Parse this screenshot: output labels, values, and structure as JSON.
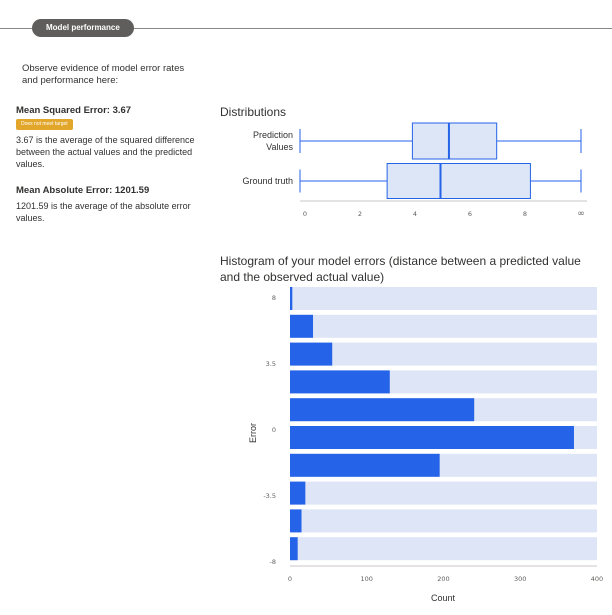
{
  "header": {
    "title": "Model performance"
  },
  "intro": "Observe evidence of model error rates and performance here:",
  "metrics": {
    "mse": {
      "title": "Mean Squared Error: 3.67",
      "badge": "Does not meet target",
      "desc": "3.67 is the average of the squared difference between the actual values and the predicted values."
    },
    "mae": {
      "title": "Mean Absolute Error: 1201.59",
      "desc": "1201.59 is the average of the absolute error values."
    }
  },
  "colors": {
    "accent": "#2563e8",
    "box_fill": "#dce6f7",
    "track": "#dde5f6",
    "badge": "#e2a62a"
  },
  "distributions": {
    "title": "Distributions",
    "prediction_label": [
      "Prediction",
      "Values"
    ],
    "ground_truth_label": "Ground truth",
    "x_ticks": [
      "0",
      "2",
      "4",
      "6",
      "8",
      "∞"
    ]
  },
  "chart_data": [
    {
      "type": "box",
      "title": "Distributions",
      "xlim": [
        0,
        10
      ],
      "x_tick_labels": [
        "0",
        "2",
        "4",
        "6",
        "8",
        "∞"
      ],
      "series": [
        {
          "name": "Prediction Values",
          "min": 0,
          "q1": 4,
          "median": 5.3,
          "q3": 7,
          "max": 10
        },
        {
          "name": "Ground truth",
          "min": 0,
          "q1": 3.1,
          "median": 5,
          "q3": 8.2,
          "max": 10
        }
      ]
    },
    {
      "type": "bar",
      "orientation": "horizontal",
      "title": "Histogram of your model errors (distance between a predicted value and the observed actual value)",
      "xlabel": "Count",
      "ylabel": "Error",
      "xlim": [
        0,
        400
      ],
      "x_ticks": [
        "0",
        "100",
        "200",
        "300",
        "400"
      ],
      "y_ticks": [
        "8",
        "3.5",
        "0",
        "-3.5",
        "-8"
      ],
      "values": [
        3,
        30,
        55,
        130,
        240,
        370,
        195,
        20,
        15,
        10
      ]
    }
  ]
}
